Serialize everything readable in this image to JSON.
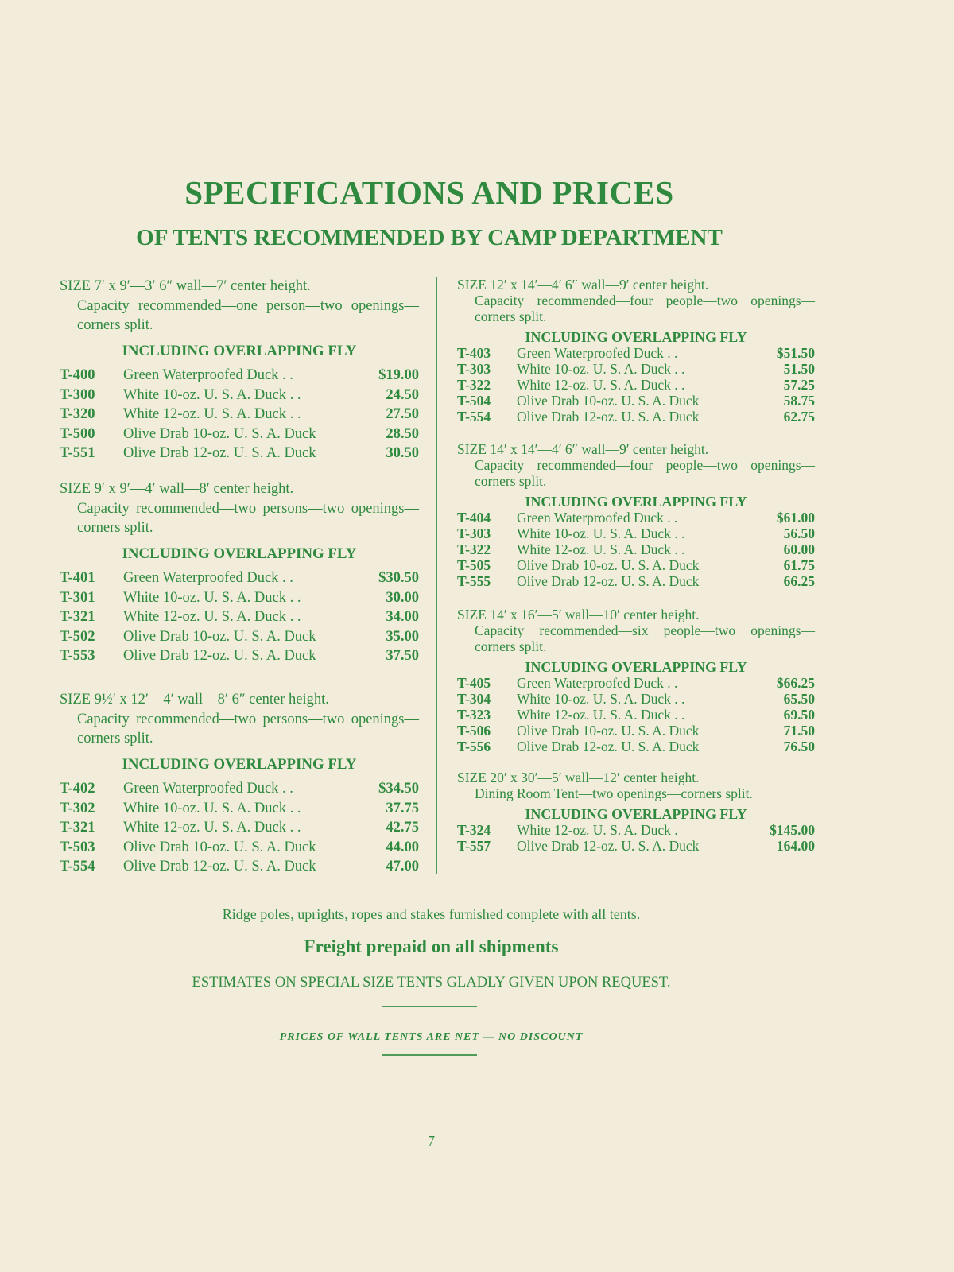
{
  "title": "SPECIFICATIONS AND PRICES",
  "subtitle": "OF TENTS RECOMMENDED BY CAMP DEPARTMENT",
  "text_color": "#2f8a40",
  "background_color": "#f2eddb",
  "left_column": [
    {
      "size": "SIZE 7′ x 9′—3′ 6″ wall—7′ center height.",
      "description": "Capacity recommended—one person—two openings—corners split.",
      "fly": "INCLUDING OVERLAPPING FLY",
      "items": [
        {
          "code": "T-400",
          "name": "Green Waterproofed Duck . .",
          "price": "$19.00"
        },
        {
          "code": "T-300",
          "name": "White 10-oz. U. S. A. Duck . .",
          "price": "24.50"
        },
        {
          "code": "T-320",
          "name": "White 12-oz. U. S. A. Duck . .",
          "price": "27.50"
        },
        {
          "code": "T-500",
          "name": "Olive Drab 10-oz. U. S. A. Duck",
          "price": "28.50"
        },
        {
          "code": "T-551",
          "name": "Olive Drab 12-oz. U. S. A. Duck",
          "price": "30.50"
        }
      ]
    },
    {
      "size": "SIZE 9′ x 9′—4′ wall—8′ center height.",
      "description": "Capacity recommended—two persons—two openings—corners split.",
      "fly": "INCLUDING OVERLAPPING FLY",
      "items": [
        {
          "code": "T-401",
          "name": "Green Waterproofed Duck . .",
          "price": "$30.50"
        },
        {
          "code": "T-301",
          "name": "White 10-oz. U. S. A. Duck . .",
          "price": "30.00"
        },
        {
          "code": "T-321",
          "name": "White 12-oz. U. S. A. Duck . .",
          "price": "34.00"
        },
        {
          "code": "T-502",
          "name": "Olive Drab 10-oz. U. S. A. Duck",
          "price": "35.00"
        },
        {
          "code": "T-553",
          "name": "Olive Drab 12-oz. U. S. A. Duck",
          "price": "37.50"
        }
      ]
    },
    {
      "size": "SIZE 9½′ x 12′—4′ wall—8′ 6″ center height.",
      "description": "Capacity recommended—two persons—two openings—corners split.",
      "fly": "INCLUDING OVERLAPPING FLY",
      "items": [
        {
          "code": "T-402",
          "name": "Green Waterproofed Duck . .",
          "price": "$34.50"
        },
        {
          "code": "T-302",
          "name": "White 10-oz. U. S. A. Duck . .",
          "price": "37.75"
        },
        {
          "code": "T-321",
          "name": "White 12-oz. U. S. A. Duck . .",
          "price": "42.75"
        },
        {
          "code": "T-503",
          "name": "Olive Drab 10-oz. U. S. A. Duck",
          "price": "44.00"
        },
        {
          "code": "T-554",
          "name": "Olive Drab 12-oz. U. S. A. Duck",
          "price": "47.00"
        }
      ]
    }
  ],
  "right_column": [
    {
      "size": "SIZE 12′ x 14′—4′ 6″ wall—9′ center height.",
      "description": "Capacity recommended—four people—two openings—corners split.",
      "fly": "INCLUDING OVERLAPPING FLY",
      "items": [
        {
          "code": "T-403",
          "name": "Green Waterproofed Duck . .",
          "price": "$51.50"
        },
        {
          "code": "T-303",
          "name": "White 10-oz. U. S. A. Duck . .",
          "price": "51.50"
        },
        {
          "code": "T-322",
          "name": "White 12-oz. U. S. A. Duck . .",
          "price": "57.25"
        },
        {
          "code": "T-504",
          "name": "Olive Drab 10-oz. U. S. A. Duck",
          "price": "58.75"
        },
        {
          "code": "T-554",
          "name": "Olive Drab 12-oz. U. S. A. Duck",
          "price": "62.75"
        }
      ]
    },
    {
      "size": "SIZE 14′ x 14′—4′ 6″ wall—9′ center height.",
      "description": "Capacity recommended—four people—two openings—corners split.",
      "fly": "INCLUDING OVERLAPPING FLY",
      "items": [
        {
          "code": "T-404",
          "name": "Green Waterproofed Duck . .",
          "price": "$61.00"
        },
        {
          "code": "T-303",
          "name": "White 10-oz. U. S. A. Duck . .",
          "price": "56.50"
        },
        {
          "code": "T-322",
          "name": "White 12-oz. U. S. A. Duck . .",
          "price": "60.00"
        },
        {
          "code": "T-505",
          "name": "Olive Drab 10-oz. U. S. A. Duck",
          "price": "61.75"
        },
        {
          "code": "T-555",
          "name": "Olive Drab 12-oz. U. S. A. Duck",
          "price": "66.25"
        }
      ]
    },
    {
      "size": "SIZE 14′ x 16′—5′ wall—10′ center height.",
      "description": "Capacity recommended—six people—two openings—corners split.",
      "fly": "INCLUDING OVERLAPPING FLY",
      "items": [
        {
          "code": "T-405",
          "name": "Green Waterproofed Duck . .",
          "price": "$66.25"
        },
        {
          "code": "T-304",
          "name": "White 10-oz. U. S. A. Duck . .",
          "price": "65.50"
        },
        {
          "code": "T-323",
          "name": "White 12-oz. U. S. A. Duck . .",
          "price": "69.50"
        },
        {
          "code": "T-506",
          "name": "Olive Drab 10-oz. U. S. A. Duck",
          "price": "71.50"
        },
        {
          "code": "T-556",
          "name": "Olive Drab 12-oz. U. S. A. Duck",
          "price": "76.50"
        }
      ]
    },
    {
      "size": "SIZE 20′ x 30′—5′ wall—12′ center height.",
      "description": "Dining Room Tent—two openings—corners split.",
      "fly": "INCLUDING OVERLAPPING FLY",
      "items": [
        {
          "code": "T-324",
          "name": "White 12-oz. U. S. A. Duck .",
          "price": "$145.00"
        },
        {
          "code": "T-557",
          "name": "Olive Drab 12-oz. U. S. A. Duck",
          "price": "164.00"
        }
      ]
    }
  ],
  "footer": {
    "furnished": "Ridge poles, uprights, ropes and stakes furnished complete with all tents.",
    "freight": "Freight prepaid on all shipments",
    "estimates": "ESTIMATES ON SPECIAL SIZE TENTS GLADLY GIVEN UPON REQUEST.",
    "net_note": "PRICES OF WALL TENTS ARE NET — NO DISCOUNT",
    "page_number": "7"
  }
}
